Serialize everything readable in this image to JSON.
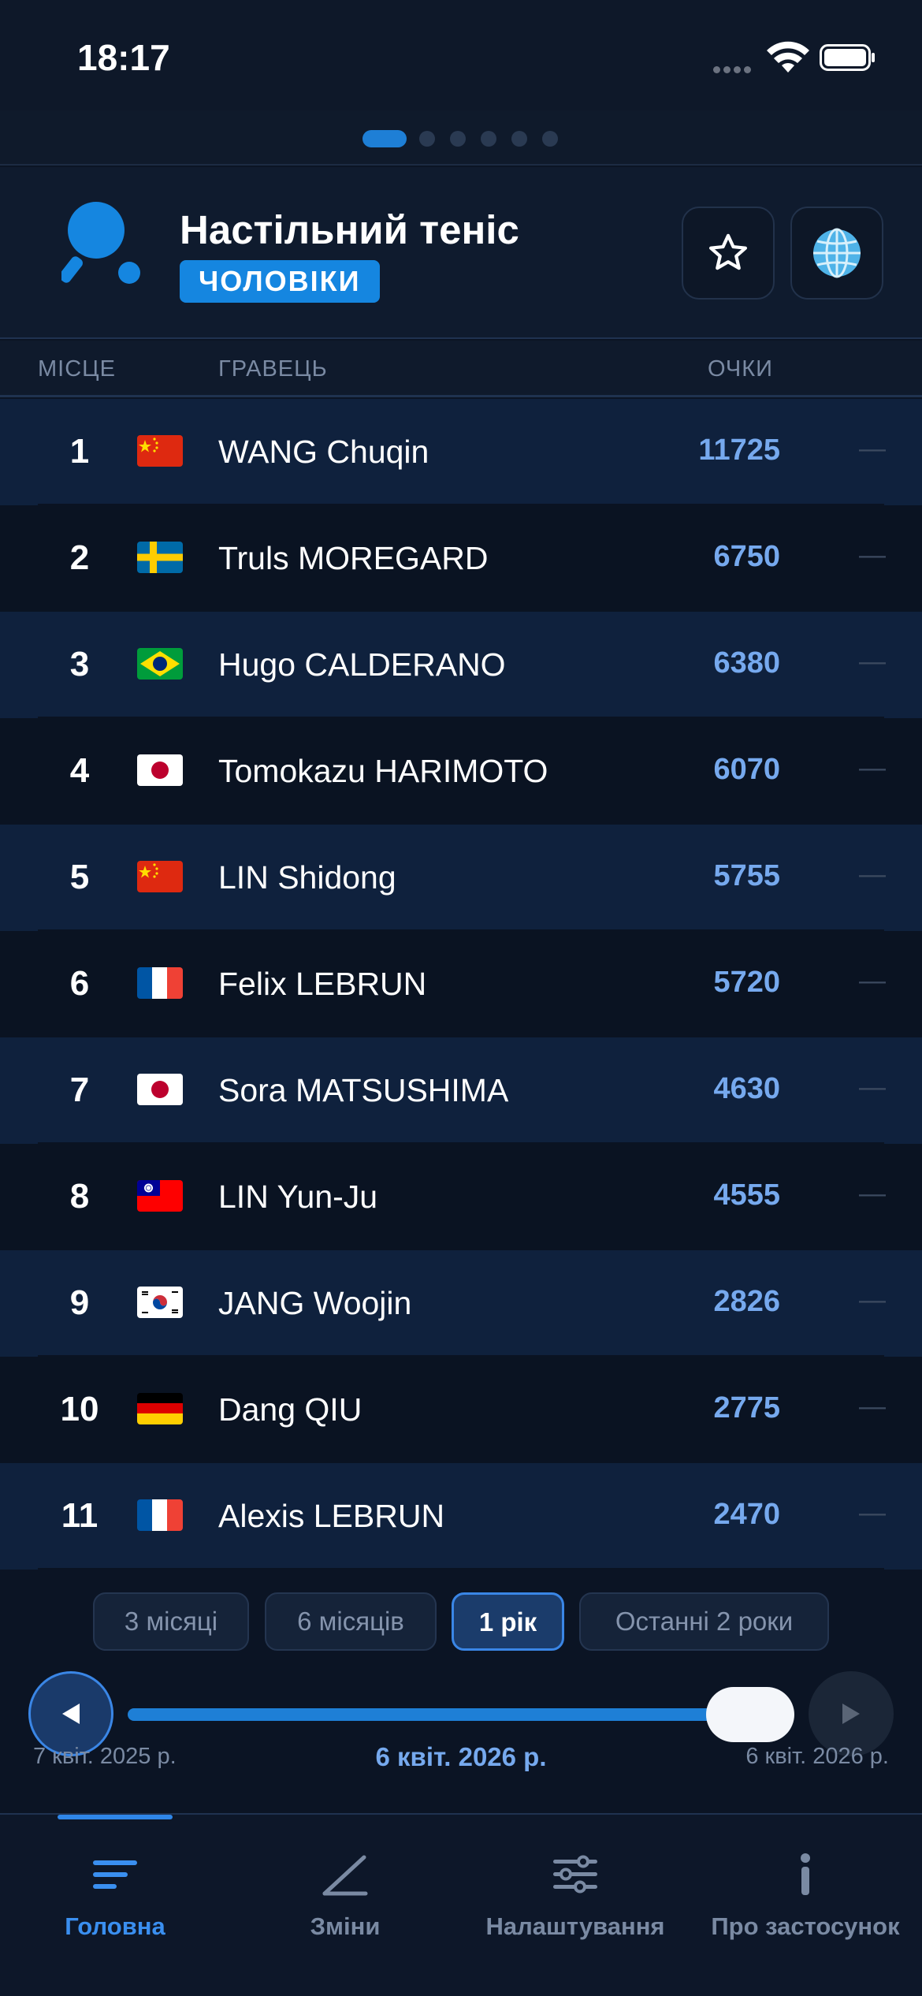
{
  "status_bar": {
    "time": "18:17"
  },
  "header": {
    "title": "Настільний теніс",
    "category_badge": "ЧОЛОВІКИ",
    "favorite_icon": "star-icon",
    "region_icon": "globe-icon"
  },
  "table": {
    "col_rank": "МІСЦЕ",
    "col_player": "ГРАВЕЦЬ",
    "col_points": "ОЧКИ",
    "rows": [
      {
        "rank": "1",
        "flag": "CN",
        "name": "WANG Chuqin",
        "points": "11725",
        "change": "—"
      },
      {
        "rank": "2",
        "flag": "SE",
        "name": "Truls MOREGARD",
        "points": "6750",
        "change": "—"
      },
      {
        "rank": "3",
        "flag": "BR",
        "name": "Hugo CALDERANO",
        "points": "6380",
        "change": "—"
      },
      {
        "rank": "4",
        "flag": "JP",
        "name": "Tomokazu HARIMOTO",
        "points": "6070",
        "change": "—"
      },
      {
        "rank": "5",
        "flag": "CN",
        "name": "LIN Shidong",
        "points": "5755",
        "change": "—"
      },
      {
        "rank": "6",
        "flag": "FR",
        "name": "Felix LEBRUN",
        "points": "5720",
        "change": "—"
      },
      {
        "rank": "7",
        "flag": "JP",
        "name": "Sora MATSUSHIMA",
        "points": "4630",
        "change": "—"
      },
      {
        "rank": "8",
        "flag": "TW",
        "name": "LIN Yun-Ju",
        "points": "4555",
        "change": "—"
      },
      {
        "rank": "9",
        "flag": "KR",
        "name": "JANG Woojin",
        "points": "2826",
        "change": "—"
      },
      {
        "rank": "10",
        "flag": "DE",
        "name": "Dang QIU",
        "points": "2775",
        "change": "—"
      },
      {
        "rank": "11",
        "flag": "FR",
        "name": "Alexis LEBRUN",
        "points": "2470",
        "change": "—"
      }
    ]
  },
  "periods": [
    {
      "label": "3 місяці",
      "active": false
    },
    {
      "label": "6 місяців",
      "active": false
    },
    {
      "label": "1 рік",
      "active": true
    },
    {
      "label": "Останні 2 роки",
      "active": false
    }
  ],
  "timeline": {
    "start_date": "7 квіт. 2025 р.",
    "current_date": "6 квіт. 2026 р.",
    "end_date": "6 квіт. 2026 р.",
    "position_fraction": 1.0
  },
  "tabs": [
    {
      "label": "Головна",
      "icon": "home-lines-icon",
      "active": true
    },
    {
      "label": "Зміни",
      "icon": "changes-icon",
      "active": false
    },
    {
      "label": "Налаштування",
      "icon": "sliders-icon",
      "active": false
    },
    {
      "label": "Про застосунок",
      "icon": "info-icon",
      "active": false
    }
  ],
  "colors": {
    "accent": "#1e7fd6",
    "points": "#76a9ee",
    "background": "#0b1424"
  }
}
